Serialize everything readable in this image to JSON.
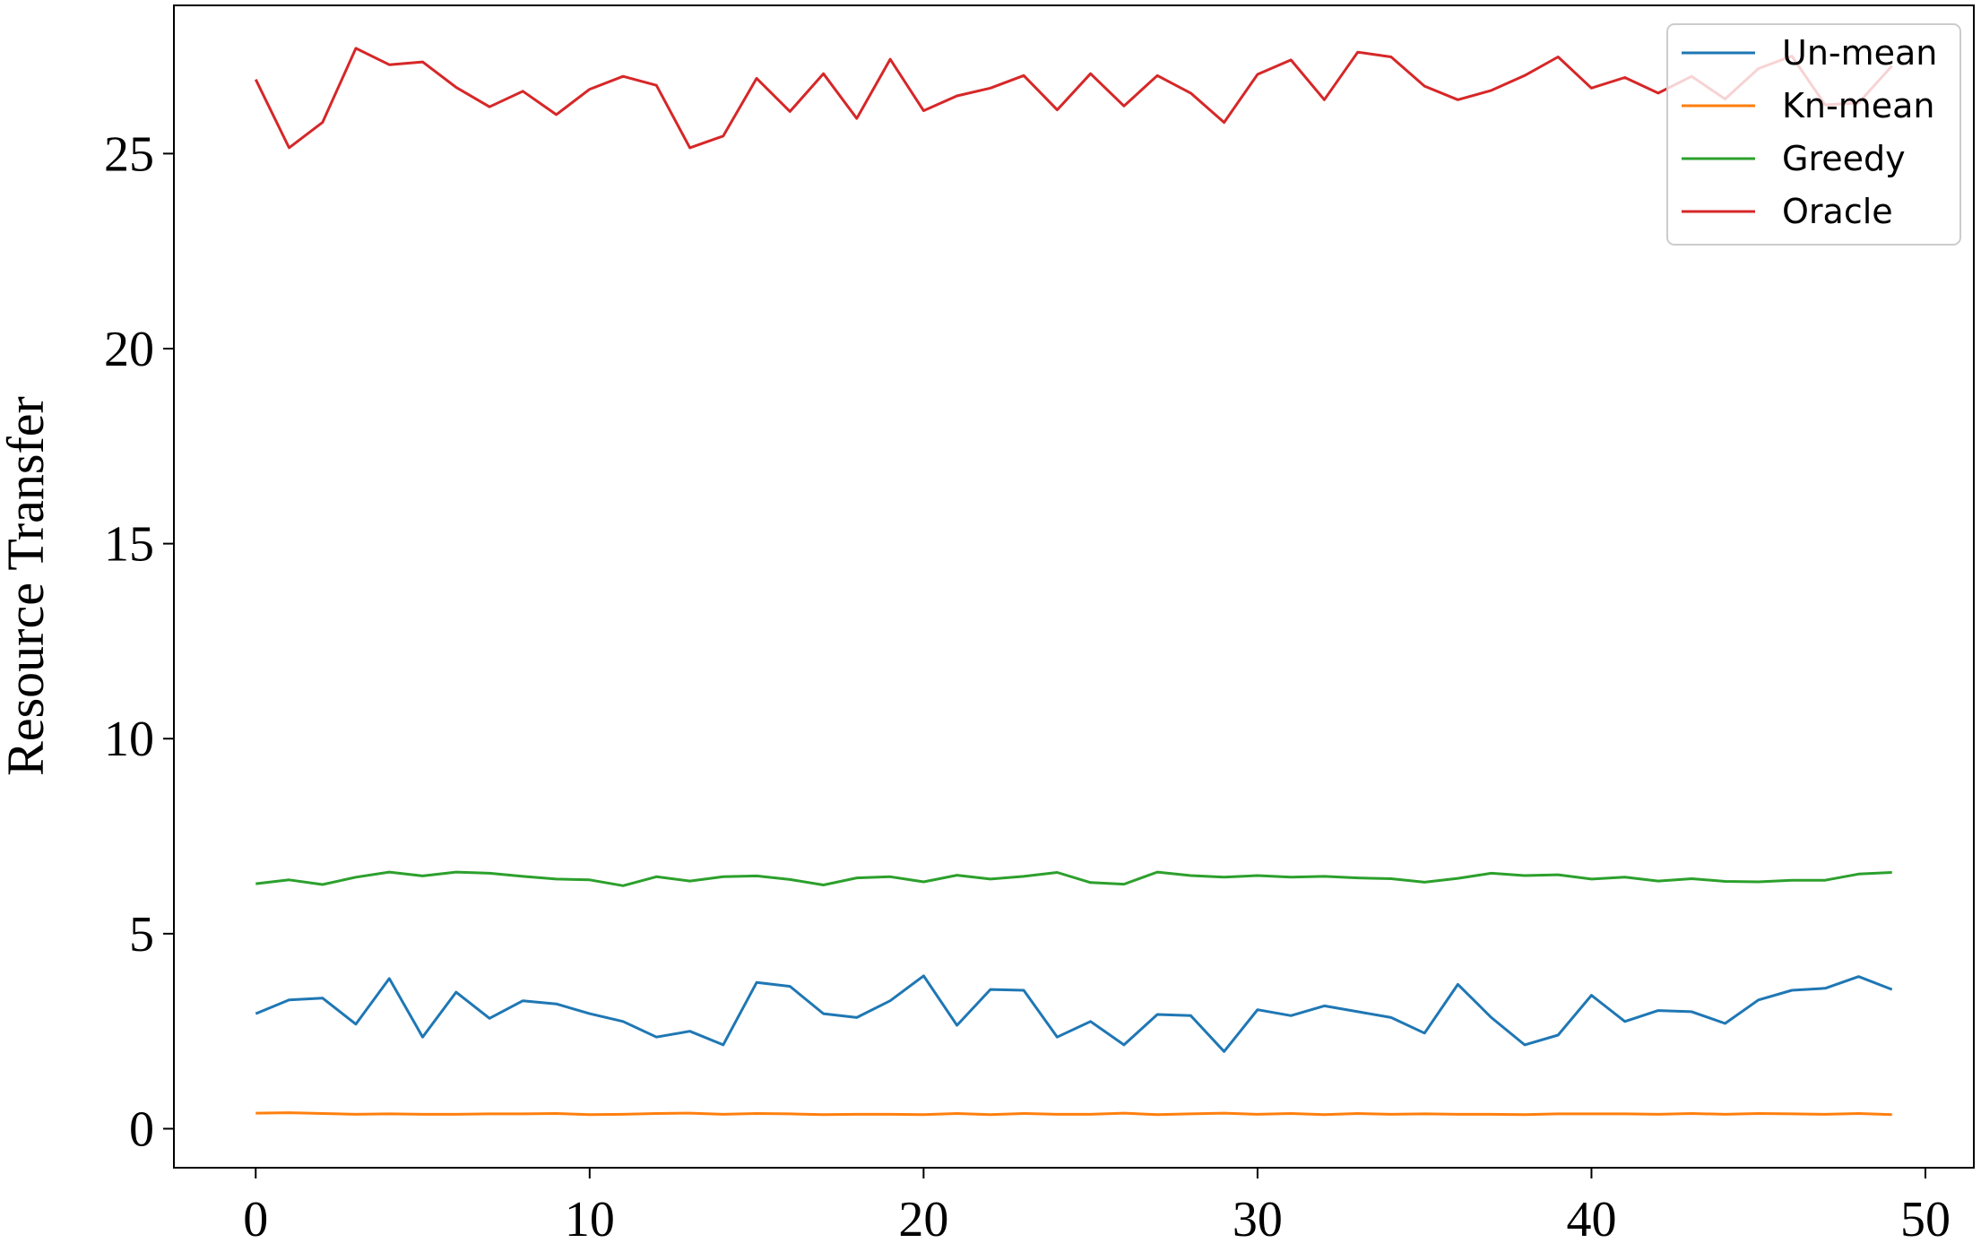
{
  "chart_data": {
    "type": "line",
    "title": "",
    "xlabel": "",
    "ylabel": "Resource Transfer",
    "xlim": [
      -2.45,
      51.45
    ],
    "ylim": [
      -1.0,
      28.8
    ],
    "xticks": [
      0,
      10,
      20,
      30,
      40,
      50
    ],
    "yticks": [
      0,
      5,
      10,
      15,
      20,
      25
    ],
    "grid": false,
    "legend_position": "top-right",
    "x": [
      0,
      1,
      2,
      3,
      4,
      5,
      6,
      7,
      8,
      9,
      10,
      11,
      12,
      13,
      14,
      15,
      16,
      17,
      18,
      19,
      20,
      21,
      22,
      23,
      24,
      25,
      26,
      27,
      28,
      29,
      30,
      31,
      32,
      33,
      34,
      35,
      36,
      37,
      38,
      39,
      40,
      41,
      42,
      43,
      44,
      45,
      46,
      47,
      48,
      49
    ],
    "series": [
      {
        "name": "Un-mean",
        "color": "#1f77b4",
        "values": [
          2.95,
          3.3,
          3.35,
          2.68,
          3.85,
          2.35,
          3.5,
          2.83,
          3.28,
          3.2,
          2.95,
          2.75,
          2.35,
          2.5,
          2.15,
          3.75,
          3.65,
          2.95,
          2.85,
          3.28,
          3.92,
          2.65,
          3.57,
          3.55,
          2.35,
          2.75,
          2.15,
          2.93,
          2.9,
          1.98,
          3.05,
          2.9,
          3.15,
          3.0,
          2.85,
          2.45,
          3.7,
          2.85,
          2.15,
          2.4,
          3.42,
          2.75,
          3.03,
          3.0,
          2.7,
          3.3,
          3.55,
          3.6,
          3.9,
          3.57
        ]
      },
      {
        "name": "Kn-mean",
        "color": "#ff7f0e",
        "values": [
          0.4,
          0.41,
          0.39,
          0.37,
          0.38,
          0.37,
          0.37,
          0.38,
          0.38,
          0.39,
          0.36,
          0.37,
          0.39,
          0.4,
          0.37,
          0.39,
          0.38,
          0.36,
          0.37,
          0.37,
          0.36,
          0.39,
          0.36,
          0.39,
          0.37,
          0.37,
          0.4,
          0.36,
          0.38,
          0.4,
          0.37,
          0.39,
          0.36,
          0.39,
          0.37,
          0.38,
          0.37,
          0.37,
          0.36,
          0.38,
          0.38,
          0.38,
          0.37,
          0.39,
          0.37,
          0.39,
          0.38,
          0.37,
          0.39,
          0.36
        ]
      },
      {
        "name": "Greedy",
        "color": "#2ca02c",
        "values": [
          6.28,
          6.38,
          6.26,
          6.45,
          6.58,
          6.48,
          6.58,
          6.55,
          6.47,
          6.4,
          6.38,
          6.23,
          6.46,
          6.35,
          6.46,
          6.48,
          6.39,
          6.25,
          6.43,
          6.46,
          6.33,
          6.5,
          6.4,
          6.47,
          6.57,
          6.31,
          6.27,
          6.58,
          6.49,
          6.45,
          6.49,
          6.45,
          6.47,
          6.43,
          6.41,
          6.32,
          6.42,
          6.55,
          6.49,
          6.51,
          6.4,
          6.45,
          6.35,
          6.41,
          6.34,
          6.33,
          6.37,
          6.37,
          6.53,
          6.57
        ]
      },
      {
        "name": "Oracle",
        "color": "#d62728",
        "values": [
          26.9,
          25.15,
          25.8,
          27.7,
          27.28,
          27.35,
          26.7,
          26.2,
          26.6,
          26.0,
          26.65,
          26.98,
          26.75,
          25.15,
          25.45,
          26.93,
          26.08,
          27.05,
          25.9,
          27.42,
          26.1,
          26.48,
          26.68,
          27.0,
          26.12,
          27.05,
          26.22,
          27.0,
          26.55,
          25.8,
          27.03,
          27.4,
          26.38,
          27.6,
          27.48,
          26.73,
          26.38,
          26.62,
          27.0,
          27.48,
          26.68,
          26.95,
          26.55,
          26.98,
          26.4,
          27.18,
          27.5,
          26.25,
          26.3,
          27.25
        ]
      }
    ]
  }
}
